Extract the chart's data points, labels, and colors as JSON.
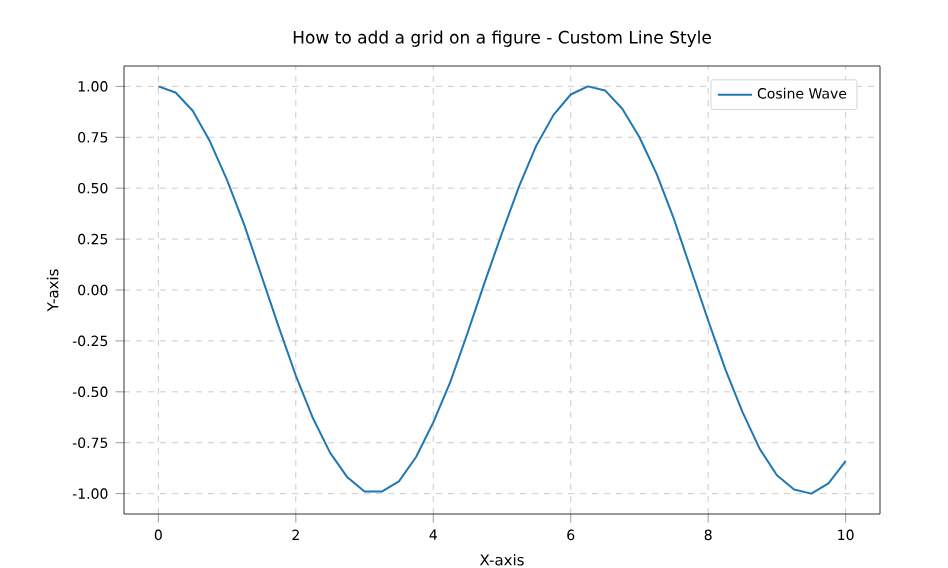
{
  "chart_data": {
    "type": "line",
    "title": "How to add a grid on a figure - Custom Line Style",
    "xlabel": "X-axis",
    "ylabel": "Y-axis",
    "x": [
      0,
      0.25,
      0.5,
      0.75,
      1,
      1.25,
      1.5,
      1.75,
      2,
      2.25,
      2.5,
      2.75,
      3,
      3.25,
      3.5,
      3.75,
      4,
      4.25,
      4.5,
      4.75,
      5,
      5.25,
      5.5,
      5.75,
      6,
      6.25,
      6.5,
      6.75,
      7,
      7.25,
      7.5,
      7.75,
      8,
      8.25,
      8.5,
      8.75,
      9,
      9.25,
      9.5,
      9.75,
      10
    ],
    "series": [
      {
        "name": "Cosine Wave",
        "color": "#1f77b4",
        "values": [
          1.0,
          0.97,
          0.88,
          0.73,
          0.54,
          0.32,
          0.07,
          -0.18,
          -0.42,
          -0.63,
          -0.8,
          -0.92,
          -0.99,
          -0.99,
          -0.94,
          -0.82,
          -0.65,
          -0.45,
          -0.21,
          0.04,
          0.28,
          0.51,
          0.71,
          0.86,
          0.96,
          1.0,
          0.98,
          0.89,
          0.75,
          0.57,
          0.35,
          0.1,
          -0.15,
          -0.39,
          -0.6,
          -0.78,
          -0.91,
          -0.98,
          -1.0,
          -0.95,
          -0.84
        ]
      }
    ],
    "xlim": [
      -0.5,
      10.5
    ],
    "ylim": [
      -1.1,
      1.1
    ],
    "xticks": [
      0,
      2,
      4,
      6,
      8,
      10
    ],
    "yticks": [
      {
        "value": -1,
        "label": "-1.00"
      },
      {
        "value": -0.75,
        "label": "-0.75"
      },
      {
        "value": -0.5,
        "label": "-0.50"
      },
      {
        "value": -0.25,
        "label": "-0.25"
      },
      {
        "value": 0,
        "label": "0.00"
      },
      {
        "value": 0.25,
        "label": "0.25"
      },
      {
        "value": 0.5,
        "label": "0.50"
      },
      {
        "value": 0.75,
        "label": "0.75"
      },
      {
        "value": 1,
        "label": "1.00"
      }
    ],
    "grid": true,
    "legend": "top right",
    "line_style": "solid",
    "marker": "none"
  }
}
